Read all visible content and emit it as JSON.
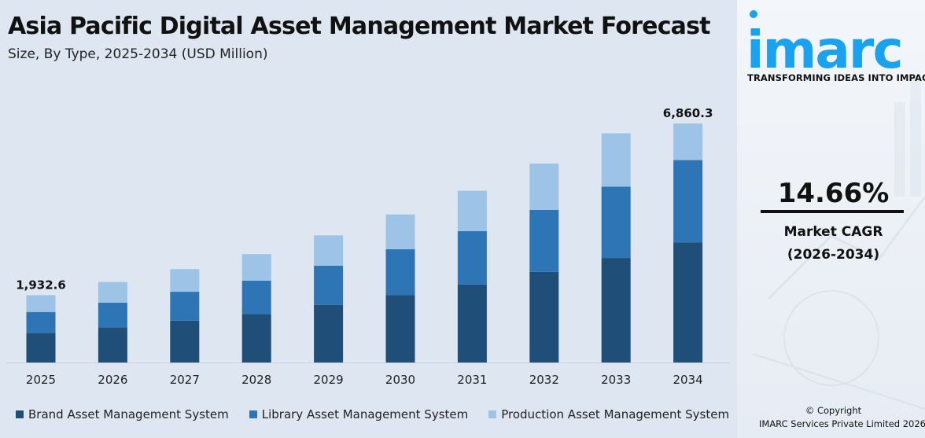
{
  "title": "Asia Pacific Digital Asset Management Market Forecast",
  "subtitle": "Size, By Type, 2025-2034 (USD Million)",
  "colors": {
    "brand": "#1f4e79",
    "library": "#2e75b6",
    "production": "#9dc3e6",
    "background": "#dde6f1",
    "logo": "#1aa1f0"
  },
  "chart_data": {
    "type": "bar",
    "stacked": true,
    "categories": [
      "2025",
      "2026",
      "2027",
      "2028",
      "2029",
      "2030",
      "2031",
      "2032",
      "2033",
      "2034"
    ],
    "series": [
      {
        "name": "Brand Asset Management System",
        "values": [
          850,
          1010,
          1200,
          1390,
          1650,
          1930,
          2240,
          2600,
          3000,
          3450
        ]
      },
      {
        "name": "Library Asset Management System",
        "values": [
          600,
          710,
          830,
          960,
          1130,
          1320,
          1530,
          1780,
          2050,
          2360
        ]
      },
      {
        "name": "Production Asset Management System",
        "values": [
          482.6,
          590,
          650,
          760,
          870,
          1000,
          1160,
          1330,
          1530,
          1050.3
        ]
      }
    ],
    "totals": [
      1932.6,
      2310,
      2680,
      3110,
      3650,
      4250,
      4930,
      5710,
      6580,
      6860.3
    ],
    "data_labels": [
      {
        "index": 0,
        "text": "1,932.6"
      },
      {
        "index": 9,
        "text": "6,860.3"
      }
    ],
    "ylim": [
      0,
      7200
    ],
    "xlabel": "",
    "ylabel": "",
    "grid": false,
    "legend": "bottom"
  },
  "side": {
    "logo_text": "imarc",
    "tagline": "TRANSFORMING IDEAS INTO IMPACT",
    "cagr_value": "14.66%",
    "cagr_label": "Market CAGR",
    "cagr_period": "(2026-2034)",
    "copyright": "© Copyright",
    "copyright_holder": "IMARC Services Private Limited 2026"
  }
}
